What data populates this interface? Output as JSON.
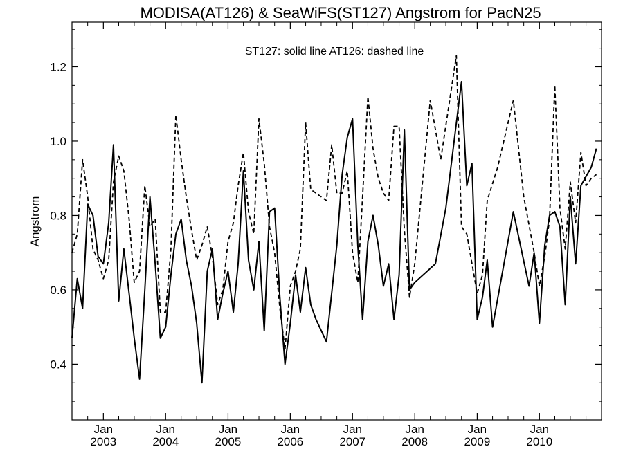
{
  "chart_data": {
    "type": "line",
    "title": "MODISA(AT126) & SeaWiFS(ST127)  Angstrom for PacN25",
    "annotation": "ST127: solid line   AT126: dashed line",
    "xlabel": "",
    "ylabel": "Angstrom",
    "xlim": [
      "2002-07-01",
      "2010-12-31"
    ],
    "ylim": [
      0.25,
      1.32
    ],
    "x_ticks": [
      {
        "date": "2003-01-01",
        "month": "Jan",
        "year": "2003"
      },
      {
        "date": "2004-01-01",
        "month": "Jan",
        "year": "2004"
      },
      {
        "date": "2005-01-01",
        "month": "Jan",
        "year": "2005"
      },
      {
        "date": "2006-01-01",
        "month": "Jan",
        "year": "2006"
      },
      {
        "date": "2007-01-01",
        "month": "Jan",
        "year": "2007"
      },
      {
        "date": "2008-01-01",
        "month": "Jan",
        "year": "2008"
      },
      {
        "date": "2009-01-01",
        "month": "Jan",
        "year": "2009"
      },
      {
        "date": "2010-01-01",
        "month": "Jan",
        "year": "2010"
      }
    ],
    "y_ticks": [
      {
        "value": 0.4,
        "label": "0.4"
      },
      {
        "value": 0.6,
        "label": "0.6"
      },
      {
        "value": 0.8,
        "label": "0.8"
      },
      {
        "value": 1.0,
        "label": "1.0"
      },
      {
        "value": 1.2,
        "label": "1.2"
      }
    ],
    "grid": false,
    "series": [
      {
        "name": "ST127",
        "style": "solid",
        "color": "#000000",
        "points": [
          [
            "2002-07-01",
            0.47
          ],
          [
            "2002-08-01",
            0.63
          ],
          [
            "2002-09-01",
            0.55
          ],
          [
            "2002-10-01",
            0.83
          ],
          [
            "2002-11-01",
            0.8
          ],
          [
            "2002-12-01",
            0.69
          ],
          [
            "2003-01-01",
            0.67
          ],
          [
            "2003-02-01",
            0.78
          ],
          [
            "2003-03-01",
            0.99
          ],
          [
            "2003-04-01",
            0.57
          ],
          [
            "2003-05-01",
            0.71
          ],
          [
            "2003-06-01",
            0.59
          ],
          [
            "2003-07-01",
            0.47
          ],
          [
            "2003-08-01",
            0.36
          ],
          [
            "2003-09-01",
            0.6
          ],
          [
            "2003-10-01",
            0.85
          ],
          [
            "2003-11-01",
            0.67
          ],
          [
            "2003-12-01",
            0.47
          ],
          [
            "2004-01-01",
            0.5
          ],
          [
            "2004-02-01",
            0.64
          ],
          [
            "2004-03-01",
            0.75
          ],
          [
            "2004-04-01",
            0.79
          ],
          [
            "2004-05-01",
            0.68
          ],
          [
            "2004-06-01",
            0.61
          ],
          [
            "2004-07-01",
            0.51
          ],
          [
            "2004-08-01",
            0.35
          ],
          [
            "2004-09-01",
            0.65
          ],
          [
            "2004-10-01",
            0.71
          ],
          [
            "2004-11-01",
            0.52
          ],
          [
            "2004-12-01",
            0.59
          ],
          [
            "2005-01-01",
            0.65
          ],
          [
            "2005-02-01",
            0.54
          ],
          [
            "2005-03-01",
            0.67
          ],
          [
            "2005-04-01",
            0.92
          ],
          [
            "2005-05-01",
            0.68
          ],
          [
            "2005-06-01",
            0.6
          ],
          [
            "2005-07-01",
            0.73
          ],
          [
            "2005-08-01",
            0.49
          ],
          [
            "2005-09-01",
            0.81
          ],
          [
            "2005-10-01",
            0.82
          ],
          [
            "2005-11-01",
            0.58
          ],
          [
            "2005-12-01",
            0.4
          ],
          [
            "2006-01-01",
            0.51
          ],
          [
            "2006-02-01",
            0.64
          ],
          [
            "2006-03-01",
            0.54
          ],
          [
            "2006-04-01",
            0.66
          ],
          [
            "2006-05-01",
            0.56
          ],
          [
            "2006-06-01",
            0.52
          ],
          [
            "2006-08-01",
            0.46
          ],
          [
            "2006-10-01",
            0.72
          ],
          [
            "2006-11-01",
            0.91
          ],
          [
            "2006-12-01",
            1.01
          ],
          [
            "2007-01-01",
            1.06
          ],
          [
            "2007-02-01",
            0.72
          ],
          [
            "2007-03-01",
            0.52
          ],
          [
            "2007-04-01",
            0.73
          ],
          [
            "2007-05-01",
            0.8
          ],
          [
            "2007-06-01",
            0.72
          ],
          [
            "2007-07-01",
            0.61
          ],
          [
            "2007-08-01",
            0.67
          ],
          [
            "2007-09-01",
            0.52
          ],
          [
            "2007-10-01",
            0.64
          ],
          [
            "2007-11-01",
            1.03
          ],
          [
            "2007-12-01",
            0.6
          ],
          [
            "2008-01-01",
            0.62
          ],
          [
            "2008-05-01",
            0.67
          ],
          [
            "2008-07-01",
            0.82
          ],
          [
            "2008-10-01",
            1.16
          ],
          [
            "2008-11-01",
            0.88
          ],
          [
            "2008-12-01",
            0.94
          ],
          [
            "2009-01-01",
            0.52
          ],
          [
            "2009-02-01",
            0.58
          ],
          [
            "2009-03-01",
            0.68
          ],
          [
            "2009-04-01",
            0.5
          ],
          [
            "2009-08-01",
            0.81
          ],
          [
            "2009-11-01",
            0.61
          ],
          [
            "2009-12-01",
            0.7
          ],
          [
            "2010-01-01",
            0.51
          ],
          [
            "2010-02-01",
            0.72
          ],
          [
            "2010-03-01",
            0.8
          ],
          [
            "2010-04-01",
            0.81
          ],
          [
            "2010-05-01",
            0.77
          ],
          [
            "2010-06-01",
            0.56
          ],
          [
            "2010-07-01",
            0.85
          ],
          [
            "2010-08-01",
            0.67
          ],
          [
            "2010-09-01",
            0.88
          ],
          [
            "2010-11-01",
            0.93
          ],
          [
            "2010-12-01",
            0.98
          ]
        ]
      },
      {
        "name": "AT126",
        "style": "dashed",
        "color": "#000000",
        "points": [
          [
            "2002-07-01",
            0.7
          ],
          [
            "2002-08-01",
            0.75
          ],
          [
            "2002-09-01",
            0.95
          ],
          [
            "2002-10-01",
            0.85
          ],
          [
            "2002-11-01",
            0.71
          ],
          [
            "2002-12-01",
            0.68
          ],
          [
            "2003-01-01",
            0.63
          ],
          [
            "2003-02-01",
            0.68
          ],
          [
            "2003-03-01",
            0.89
          ],
          [
            "2003-04-01",
            0.96
          ],
          [
            "2003-05-01",
            0.92
          ],
          [
            "2003-06-01",
            0.79
          ],
          [
            "2003-07-01",
            0.62
          ],
          [
            "2003-08-01",
            0.65
          ],
          [
            "2003-09-01",
            0.88
          ],
          [
            "2003-10-01",
            0.77
          ],
          [
            "2003-11-01",
            0.79
          ],
          [
            "2003-12-01",
            0.54
          ],
          [
            "2004-01-01",
            0.54
          ],
          [
            "2004-02-01",
            0.71
          ],
          [
            "2004-03-01",
            1.07
          ],
          [
            "2004-04-01",
            0.95
          ],
          [
            "2004-05-01",
            0.85
          ],
          [
            "2004-06-01",
            0.76
          ],
          [
            "2004-07-01",
            0.68
          ],
          [
            "2004-08-01",
            0.72
          ],
          [
            "2004-09-01",
            0.77
          ],
          [
            "2004-10-01",
            0.69
          ],
          [
            "2004-11-01",
            0.56
          ],
          [
            "2004-12-01",
            0.6
          ],
          [
            "2005-01-01",
            0.73
          ],
          [
            "2005-02-01",
            0.78
          ],
          [
            "2005-03-01",
            0.88
          ],
          [
            "2005-04-01",
            0.97
          ],
          [
            "2005-05-01",
            0.81
          ],
          [
            "2005-06-01",
            0.75
          ],
          [
            "2005-07-01",
            1.06
          ],
          [
            "2005-08-01",
            0.94
          ],
          [
            "2005-09-01",
            0.77
          ],
          [
            "2005-10-01",
            0.7
          ],
          [
            "2005-11-01",
            0.55
          ],
          [
            "2005-12-01",
            0.44
          ],
          [
            "2006-01-01",
            0.61
          ],
          [
            "2006-02-01",
            0.65
          ],
          [
            "2006-03-01",
            0.71
          ],
          [
            "2006-04-01",
            1.05
          ],
          [
            "2006-05-01",
            0.87
          ],
          [
            "2006-08-01",
            0.84
          ],
          [
            "2006-09-01",
            0.99
          ],
          [
            "2006-10-01",
            0.86
          ],
          [
            "2006-11-01",
            0.86
          ],
          [
            "2006-12-01",
            0.92
          ],
          [
            "2007-01-01",
            0.7
          ],
          [
            "2007-02-01",
            0.62
          ],
          [
            "2007-03-01",
            0.85
          ],
          [
            "2007-04-01",
            1.12
          ],
          [
            "2007-05-01",
            0.98
          ],
          [
            "2007-06-01",
            0.9
          ],
          [
            "2007-07-01",
            0.86
          ],
          [
            "2007-08-01",
            0.84
          ],
          [
            "2007-09-01",
            1.04
          ],
          [
            "2007-10-01",
            1.04
          ],
          [
            "2007-11-01",
            0.76
          ],
          [
            "2007-12-01",
            0.58
          ],
          [
            "2008-01-01",
            0.67
          ],
          [
            "2008-04-01",
            1.11
          ],
          [
            "2008-06-01",
            0.95
          ],
          [
            "2008-09-01",
            1.23
          ],
          [
            "2008-10-01",
            0.77
          ],
          [
            "2008-11-01",
            0.75
          ],
          [
            "2009-01-01",
            0.59
          ],
          [
            "2009-02-01",
            0.64
          ],
          [
            "2009-03-01",
            0.84
          ],
          [
            "2009-05-01",
            0.93
          ],
          [
            "2009-08-01",
            1.11
          ],
          [
            "2009-10-01",
            0.85
          ],
          [
            "2009-12-01",
            0.7
          ],
          [
            "2010-01-01",
            0.61
          ],
          [
            "2010-02-01",
            0.69
          ],
          [
            "2010-03-01",
            0.79
          ],
          [
            "2010-04-01",
            1.15
          ],
          [
            "2010-05-01",
            0.82
          ],
          [
            "2010-06-01",
            0.71
          ],
          [
            "2010-07-01",
            0.89
          ],
          [
            "2010-08-01",
            0.78
          ],
          [
            "2010-09-01",
            0.97
          ],
          [
            "2010-10-01",
            0.88
          ],
          [
            "2010-11-01",
            0.9
          ],
          [
            "2010-12-01",
            0.91
          ]
        ]
      }
    ]
  }
}
